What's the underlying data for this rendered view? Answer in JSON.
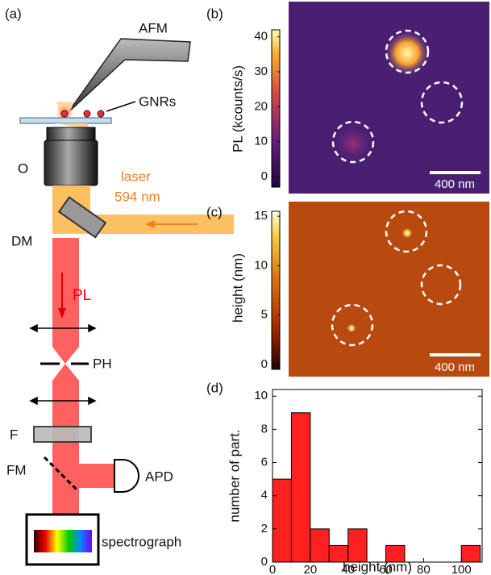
{
  "panel_labels": [
    "(a)",
    "(b)",
    "(c)",
    "(d)"
  ],
  "diagram": {
    "afm": "AFM",
    "gnrs": "GNRs",
    "objective": "O",
    "laser": "laser",
    "wavelength": "594 nm",
    "dm": "DM",
    "pl": "PL",
    "ph": "PH",
    "filter": "F",
    "fm": "FM",
    "apd": "APD",
    "spectrograph": "spectrograph"
  },
  "images": [
    {
      "colorbar_label": "PL (kcounts/s)",
      "clim": [
        -3,
        42
      ],
      "cticks": [
        0,
        10,
        20,
        30,
        40
      ],
      "scale_bar": "400 nm"
    },
    {
      "colorbar_label": "height (nm)",
      "clim": [
        -0.5,
        15.5
      ],
      "cticks": [
        0,
        5,
        10,
        15
      ],
      "scale_bar": "400 nm"
    }
  ],
  "chart_data": {
    "type": "histogram",
    "bins": [
      0,
      10,
      20,
      30,
      40,
      50,
      60,
      70,
      80,
      90,
      100,
      110
    ],
    "values": [
      5,
      9,
      2,
      1,
      2,
      0,
      1,
      0,
      0,
      0,
      1
    ],
    "color": "#ff2020",
    "xlim": [
      0,
      111
    ],
    "xticks": [
      0,
      20,
      40,
      60,
      80,
      100
    ],
    "ylim": [
      0,
      10.4
    ],
    "yticks": [
      0,
      2,
      4,
      6,
      8,
      10
    ],
    "xlabel": "height (nm)",
    "ylabel": "number of part."
  }
}
